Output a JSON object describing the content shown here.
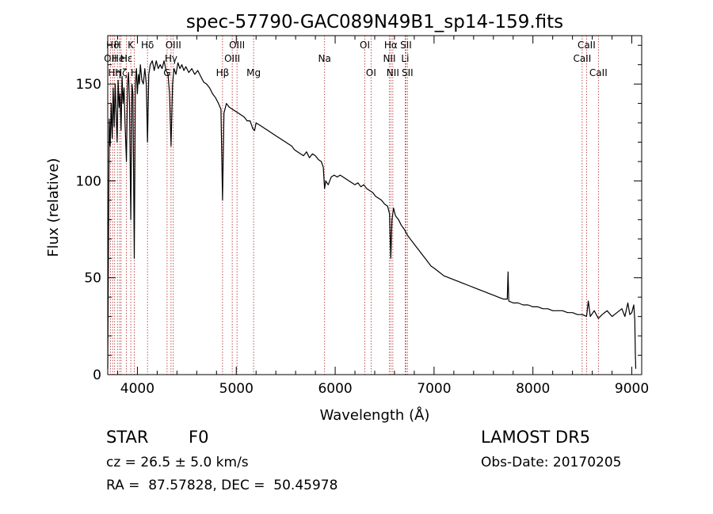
{
  "chart_data": {
    "type": "line",
    "title": "spec-57790-GAC089N49B1_sp14-159.fits",
    "xlabel": "Wavelength (Å)",
    "ylabel": "Flux (relative)",
    "xlim": [
      3700,
      9100
    ],
    "ylim": [
      0,
      175
    ],
    "xticks": [
      4000,
      5000,
      6000,
      7000,
      8000,
      9000
    ],
    "yticks": [
      0,
      50,
      100,
      150
    ],
    "x_tick_labels": [
      "4000",
      "5000",
      "6000",
      "7000",
      "8000",
      "9000"
    ],
    "y_tick_labels": [
      "0",
      "50",
      "100",
      "150"
    ],
    "grid": false,
    "series": [
      {
        "color": "#000000",
        "points": [
          [
            3700,
            3
          ],
          [
            3705,
            45
          ],
          [
            3715,
            132
          ],
          [
            3725,
            118
          ],
          [
            3735,
            140
          ],
          [
            3745,
            122
          ],
          [
            3755,
            148
          ],
          [
            3765,
            128
          ],
          [
            3775,
            150
          ],
          [
            3785,
            135
          ],
          [
            3795,
            120
          ],
          [
            3805,
            152
          ],
          [
            3815,
            138
          ],
          [
            3825,
            145
          ],
          [
            3835,
            126
          ],
          [
            3845,
            154
          ],
          [
            3855,
            140
          ],
          [
            3865,
            148
          ],
          [
            3875,
            130
          ],
          [
            3889,
            110
          ],
          [
            3900,
            150
          ],
          [
            3910,
            156
          ],
          [
            3920,
            140
          ],
          [
            3933,
            80
          ],
          [
            3945,
            150
          ],
          [
            3955,
            145
          ],
          [
            3968,
            60
          ],
          [
            3980,
            150
          ],
          [
            3990,
            158
          ],
          [
            4000,
            145
          ],
          [
            4010,
            155
          ],
          [
            4020,
            150
          ],
          [
            4030,
            160
          ],
          [
            4045,
            152
          ],
          [
            4060,
            150
          ],
          [
            4075,
            158
          ],
          [
            4090,
            150
          ],
          [
            4102,
            120
          ],
          [
            4115,
            155
          ],
          [
            4130,
            160
          ],
          [
            4150,
            162
          ],
          [
            4170,
            157
          ],
          [
            4190,
            162
          ],
          [
            4210,
            158
          ],
          [
            4230,
            160
          ],
          [
            4250,
            158
          ],
          [
            4270,
            162
          ],
          [
            4290,
            157
          ],
          [
            4310,
            155
          ],
          [
            4325,
            145
          ],
          [
            4340,
            118
          ],
          [
            4355,
            150
          ],
          [
            4370,
            158
          ],
          [
            4390,
            155
          ],
          [
            4410,
            161
          ],
          [
            4430,
            158
          ],
          [
            4450,
            160
          ],
          [
            4470,
            157
          ],
          [
            4490,
            159
          ],
          [
            4520,
            156
          ],
          [
            4550,
            158
          ],
          [
            4580,
            155
          ],
          [
            4610,
            157
          ],
          [
            4640,
            154
          ],
          [
            4670,
            151
          ],
          [
            4700,
            150
          ],
          [
            4730,
            148
          ],
          [
            4760,
            145
          ],
          [
            4790,
            143
          ],
          [
            4820,
            140
          ],
          [
            4845,
            137
          ],
          [
            4861,
            90
          ],
          [
            4875,
            135
          ],
          [
            4900,
            140
          ],
          [
            4930,
            138
          ],
          [
            4960,
            137
          ],
          [
            4990,
            136
          ],
          [
            5020,
            135
          ],
          [
            5050,
            134
          ],
          [
            5080,
            133
          ],
          [
            5110,
            131
          ],
          [
            5140,
            131
          ],
          [
            5167,
            127
          ],
          [
            5185,
            126
          ],
          [
            5200,
            130
          ],
          [
            5230,
            129
          ],
          [
            5260,
            128
          ],
          [
            5290,
            127
          ],
          [
            5320,
            126
          ],
          [
            5350,
            125
          ],
          [
            5380,
            124
          ],
          [
            5410,
            123
          ],
          [
            5440,
            122
          ],
          [
            5470,
            121
          ],
          [
            5500,
            120
          ],
          [
            5530,
            119
          ],
          [
            5560,
            118
          ],
          [
            5590,
            116
          ],
          [
            5620,
            115
          ],
          [
            5650,
            114
          ],
          [
            5680,
            113
          ],
          [
            5710,
            115
          ],
          [
            5740,
            112
          ],
          [
            5770,
            114
          ],
          [
            5800,
            113
          ],
          [
            5830,
            111
          ],
          [
            5860,
            110
          ],
          [
            5880,
            107
          ],
          [
            5893,
            96
          ],
          [
            5905,
            100
          ],
          [
            5930,
            98
          ],
          [
            5960,
            102
          ],
          [
            5990,
            103
          ],
          [
            6020,
            102
          ],
          [
            6050,
            103
          ],
          [
            6080,
            102
          ],
          [
            6110,
            101
          ],
          [
            6140,
            100
          ],
          [
            6170,
            99
          ],
          [
            6200,
            98
          ],
          [
            6230,
            99
          ],
          [
            6260,
            97
          ],
          [
            6290,
            98
          ],
          [
            6320,
            96
          ],
          [
            6350,
            95
          ],
          [
            6380,
            94
          ],
          [
            6410,
            92
          ],
          [
            6440,
            91
          ],
          [
            6470,
            90
          ],
          [
            6500,
            88
          ],
          [
            6530,
            87
          ],
          [
            6550,
            83
          ],
          [
            6563,
            60
          ],
          [
            6575,
            80
          ],
          [
            6590,
            86
          ],
          [
            6610,
            82
          ],
          [
            6640,
            80
          ],
          [
            6670,
            77
          ],
          [
            6700,
            75
          ],
          [
            6730,
            72
          ],
          [
            6760,
            70
          ],
          [
            6790,
            68
          ],
          [
            6820,
            66
          ],
          [
            6850,
            64
          ],
          [
            6880,
            62
          ],
          [
            6910,
            60
          ],
          [
            6940,
            58
          ],
          [
            6970,
            56
          ],
          [
            7000,
            55
          ],
          [
            7050,
            53
          ],
          [
            7100,
            51
          ],
          [
            7150,
            50
          ],
          [
            7200,
            49
          ],
          [
            7250,
            48
          ],
          [
            7300,
            47
          ],
          [
            7350,
            46
          ],
          [
            7400,
            45
          ],
          [
            7450,
            44
          ],
          [
            7500,
            43
          ],
          [
            7550,
            42
          ],
          [
            7600,
            41
          ],
          [
            7650,
            40
          ],
          [
            7700,
            39
          ],
          [
            7740,
            39
          ],
          [
            7748,
            53
          ],
          [
            7756,
            38
          ],
          [
            7800,
            37
          ],
          [
            7850,
            37
          ],
          [
            7900,
            36
          ],
          [
            7950,
            36
          ],
          [
            8000,
            35
          ],
          [
            8050,
            35
          ],
          [
            8100,
            34
          ],
          [
            8150,
            34
          ],
          [
            8200,
            33
          ],
          [
            8250,
            33
          ],
          [
            8300,
            33
          ],
          [
            8350,
            32
          ],
          [
            8400,
            32
          ],
          [
            8450,
            31
          ],
          [
            8500,
            31
          ],
          [
            8542,
            30
          ],
          [
            8560,
            38
          ],
          [
            8580,
            30
          ],
          [
            8620,
            33
          ],
          [
            8662,
            29
          ],
          [
            8700,
            31
          ],
          [
            8750,
            33
          ],
          [
            8800,
            30
          ],
          [
            8850,
            32
          ],
          [
            8900,
            34
          ],
          [
            8930,
            30
          ],
          [
            8960,
            37
          ],
          [
            8980,
            31
          ],
          [
            9000,
            32
          ],
          [
            9020,
            36
          ],
          [
            9030,
            28
          ],
          [
            9035,
            12
          ],
          [
            9040,
            3
          ]
        ]
      }
    ],
    "lines": [
      {
        "x": 3727,
        "label": "OII",
        "row": 1
      },
      {
        "x": 3750,
        "label": "Hϑ",
        "row": 0
      },
      {
        "x": 3770,
        "label": "Hη",
        "row": 2
      },
      {
        "x": 3798,
        "label": "H",
        "row": 0
      },
      {
        "x": 3820,
        "label": "HeI",
        "row": 1
      },
      {
        "x": 3835,
        "label": "Hζ",
        "row": 2
      },
      {
        "x": 3889,
        "label": "Hε",
        "row": 1
      },
      {
        "x": 3933,
        "label": "K",
        "row": 0
      },
      {
        "x": 3968,
        "label": "H",
        "row": 2
      },
      {
        "x": 4102,
        "label": "Hδ",
        "row": 0
      },
      {
        "x": 4300,
        "label": "G",
        "row": 2
      },
      {
        "x": 4340,
        "label": "Hγ",
        "row": 1
      },
      {
        "x": 4363,
        "label": "OIII",
        "row": 0
      },
      {
        "x": 4861,
        "label": "Hβ",
        "row": 2
      },
      {
        "x": 4959,
        "label": "OIII",
        "row": 1
      },
      {
        "x": 5007,
        "label": "OIII",
        "row": 0
      },
      {
        "x": 5175,
        "label": "Mg",
        "row": 2
      },
      {
        "x": 5893,
        "label": "Na",
        "row": 1
      },
      {
        "x": 6300,
        "label": "OI",
        "row": 0
      },
      {
        "x": 6363,
        "label": "OI",
        "row": 2
      },
      {
        "x": 6548,
        "label": "NII",
        "row": 1
      },
      {
        "x": 6563,
        "label": "Hα",
        "row": 0
      },
      {
        "x": 6583,
        "label": "NII",
        "row": 2
      },
      {
        "x": 6708,
        "label": "Li",
        "row": 1
      },
      {
        "x": 6716,
        "label": "SII",
        "row": 0
      },
      {
        "x": 6731,
        "label": "SII",
        "row": 2
      },
      {
        "x": 8498,
        "label": "CaII",
        "row": 1
      },
      {
        "x": 8542,
        "label": "CaII",
        "row": 0
      },
      {
        "x": 8662,
        "label": "CaII",
        "row": 2
      }
    ],
    "line_color": "#b22222"
  },
  "info": {
    "object_class": "STAR",
    "subclass": "F0",
    "survey": "LAMOST DR5",
    "redshift": "cz = 26.5 ± 5.0 km/s",
    "obs_date": "Obs-Date: 20170205",
    "coords": "RA =  87.57828, DEC =  50.45978"
  }
}
